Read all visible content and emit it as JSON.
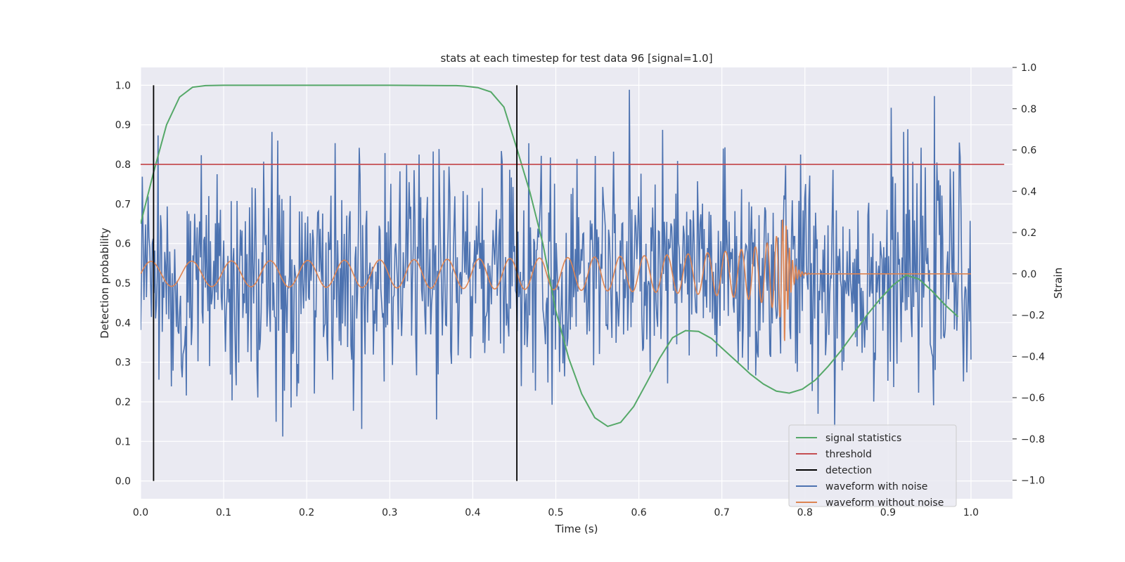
{
  "chart_data": {
    "type": "line",
    "title": "stats at each timestep for test data 96 [signal=1.0]",
    "xlabel": "Time (s)",
    "ylabel_left": "Detection probability",
    "ylabel_right": "Strain",
    "xlim": [
      0.0,
      1.05
    ],
    "ylim_left": [
      -0.045,
      1.045
    ],
    "ylim_right": [
      -1.09,
      1.0
    ],
    "x_ticks": [
      "0.0",
      "0.1",
      "0.2",
      "0.3",
      "0.4",
      "0.5",
      "0.6",
      "0.7",
      "0.8",
      "0.9",
      "1.0"
    ],
    "y_ticks_left": [
      "0.0",
      "0.1",
      "0.2",
      "0.3",
      "0.4",
      "0.5",
      "0.6",
      "0.7",
      "0.8",
      "0.9",
      "1.0"
    ],
    "y_ticks_right": [
      "−1.0",
      "−0.8",
      "−0.6",
      "−0.4",
      "−0.2",
      "0.0",
      "0.2",
      "0.4",
      "0.6",
      "0.8",
      "1.0"
    ],
    "grid": true,
    "legend_position": "lower-right",
    "colors": {
      "signal_statistics": "#55a868",
      "threshold": "#c44e52",
      "detection": "#000000",
      "waveform_with_noise": "#4c72b0",
      "waveform_without_noise": "#dd8452",
      "plot_background": "#eaeaf2",
      "grid": "#ffffff"
    },
    "series": [
      {
        "name": "signal statistics",
        "axis": "left",
        "x": [
          0.0,
          0.0156,
          0.0312,
          0.0469,
          0.0625,
          0.0781,
          0.1,
          0.2,
          0.3,
          0.38,
          0.39,
          0.4062,
          0.4219,
          0.4375,
          0.4531,
          0.4688,
          0.4844,
          0.5,
          0.5156,
          0.5312,
          0.5469,
          0.5625,
          0.5781,
          0.5938,
          0.6094,
          0.625,
          0.6406,
          0.6562,
          0.6719,
          0.6875,
          0.7031,
          0.7188,
          0.7344,
          0.75,
          0.7656,
          0.7812,
          0.7969,
          0.8125,
          0.8281,
          0.8438,
          0.8594,
          0.875,
          0.8906,
          0.9062,
          0.9219,
          0.9375,
          0.9531,
          0.9688,
          0.9844
        ],
        "y": [
          0.65,
          0.78,
          0.9,
          0.97,
          0.995,
          0.999,
          1.0,
          1.0,
          1.0,
          0.999,
          0.998,
          0.994,
          0.983,
          0.945,
          0.84,
          0.73,
          0.6,
          0.43,
          0.31,
          0.22,
          0.16,
          0.138,
          0.148,
          0.188,
          0.248,
          0.31,
          0.362,
          0.38,
          0.378,
          0.36,
          0.33,
          0.3,
          0.27,
          0.245,
          0.227,
          0.222,
          0.232,
          0.255,
          0.29,
          0.33,
          0.375,
          0.42,
          0.46,
          0.495,
          0.52,
          0.51,
          0.48,
          0.445,
          0.415
        ]
      },
      {
        "name": "threshold",
        "axis": "left",
        "x": [
          0.0,
          1.04
        ],
        "y": [
          0.8,
          0.8
        ]
      },
      {
        "name": "detection",
        "axis": "left",
        "x": [
          0.0156,
          0.4531
        ],
        "y_range": [
          0.0,
          1.0
        ]
      },
      {
        "name": "waveform with noise",
        "axis": "right",
        "x_range": [
          0.0,
          1.0
        ],
        "n_points": 1000,
        "y_range": [
          -1.0,
          1.0
        ],
        "description_values": "noisy strain, approx. gaussian with std 0.25 around 0"
      },
      {
        "name": "waveform without noise",
        "axis": "right",
        "x_range": [
          0.0,
          1.0
        ],
        "n_points": 1000,
        "amplitude_start": 0.06,
        "amplitude_peak": 0.36,
        "merger_time": 0.775,
        "freq_start_hz": 20
      }
    ],
    "legend": [
      "signal statistics",
      "threshold",
      "detection",
      "waveform with noise",
      "waveform without noise"
    ]
  }
}
